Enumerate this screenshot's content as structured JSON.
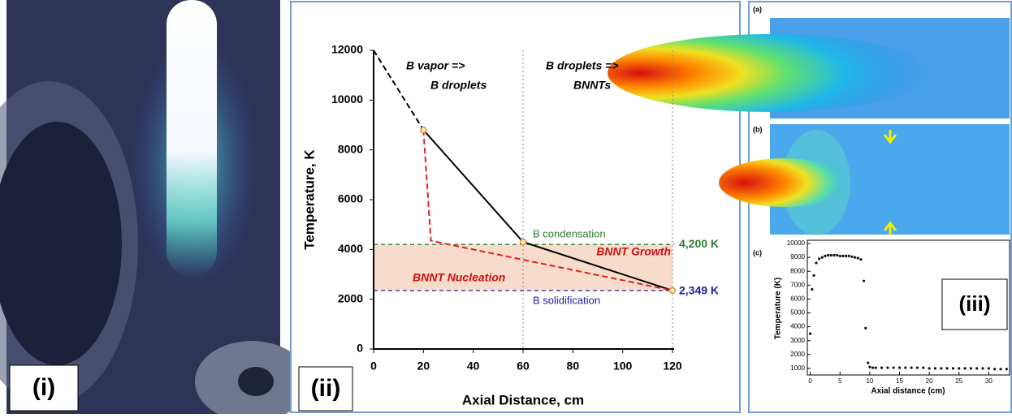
{
  "panel_labels": [
    "(i)",
    "(ii)",
    "(iii)",
    "(a)",
    "(b)",
    "(c)"
  ],
  "chart_data": [
    {
      "type": "line",
      "x_label": "Axial Distance, cm",
      "y_label": "Temperature, K",
      "xlim": [
        0,
        120
      ],
      "xticks": [
        0,
        20,
        40,
        60,
        80,
        100,
        120
      ],
      "ylim": [
        0,
        12000
      ],
      "yticks": [
        0,
        2000,
        4000,
        6000,
        8000,
        10000,
        12000
      ],
      "series": [
        {
          "color": "#000000",
          "dashed": true,
          "markers": false,
          "x": [
            0,
            20
          ],
          "values": [
            12000,
            8800
          ]
        },
        {
          "color": "#000000",
          "dashed": false,
          "markers": true,
          "x": [
            20,
            60,
            120
          ],
          "values": [
            8800,
            4300,
            2349
          ]
        },
        {
          "color": "#e02020",
          "dashed": true,
          "markers": false,
          "x": [
            20,
            23,
            120
          ],
          "values": [
            8800,
            4350,
            2349
          ]
        }
      ],
      "marker_color": "#e69138",
      "band_color": "#f8dccb",
      "vlines": [
        60,
        120
      ],
      "hlines": [
        {
          "value": 4200,
          "label": "4,200 K",
          "text": "B condensation",
          "color": "#2e7d32"
        },
        {
          "value": 2349,
          "label": "2,349 K",
          "text": "B solidification",
          "color": "#2020a0"
        }
      ],
      "annotations": [
        "B vapor =>",
        "B droplets",
        "B droplets =>",
        "BNNTs",
        "BNNT Growth",
        "BNNT Nucleation"
      ]
    },
    {
      "type": "scatter",
      "x_label": "Axial distance (cm)",
      "y_label": "Temperature (K)",
      "xlim": [
        -0.5,
        33.5
      ],
      "xticks": [
        0,
        5,
        10,
        15,
        20,
        25,
        30
      ],
      "ylim": [
        0,
        10000
      ],
      "yticks": [
        1000,
        2000,
        3000,
        4000,
        5000,
        6000,
        7000,
        8000,
        9000,
        10000
      ],
      "color": "#111111",
      "x": [
        0,
        0.3,
        0.6,
        1,
        1.5,
        2,
        2.5,
        3,
        3.5,
        4,
        4.5,
        5,
        5.5,
        6,
        6.5,
        7,
        7.5,
        8,
        8.5,
        9,
        9.3,
        9.7,
        10,
        10.5,
        11,
        12,
        13,
        14,
        15,
        16,
        17,
        18,
        19,
        20,
        21,
        22,
        23,
        24,
        25,
        26,
        27,
        28,
        29,
        30,
        31,
        32,
        33
      ],
      "values": [
        3500,
        6700,
        7700,
        8600,
        8900,
        9000,
        9100,
        9150,
        9150,
        9150,
        9150,
        9100,
        9100,
        9100,
        9100,
        9050,
        9000,
        8950,
        8850,
        7300,
        3900,
        1400,
        1100,
        1050,
        1050,
        1050,
        1050,
        1050,
        1050,
        1050,
        1050,
        1050,
        1050,
        1000,
        1000,
        1000,
        1000,
        1000,
        1000,
        1000,
        1000,
        1000,
        1000,
        1000,
        950,
        950,
        950
      ]
    }
  ]
}
